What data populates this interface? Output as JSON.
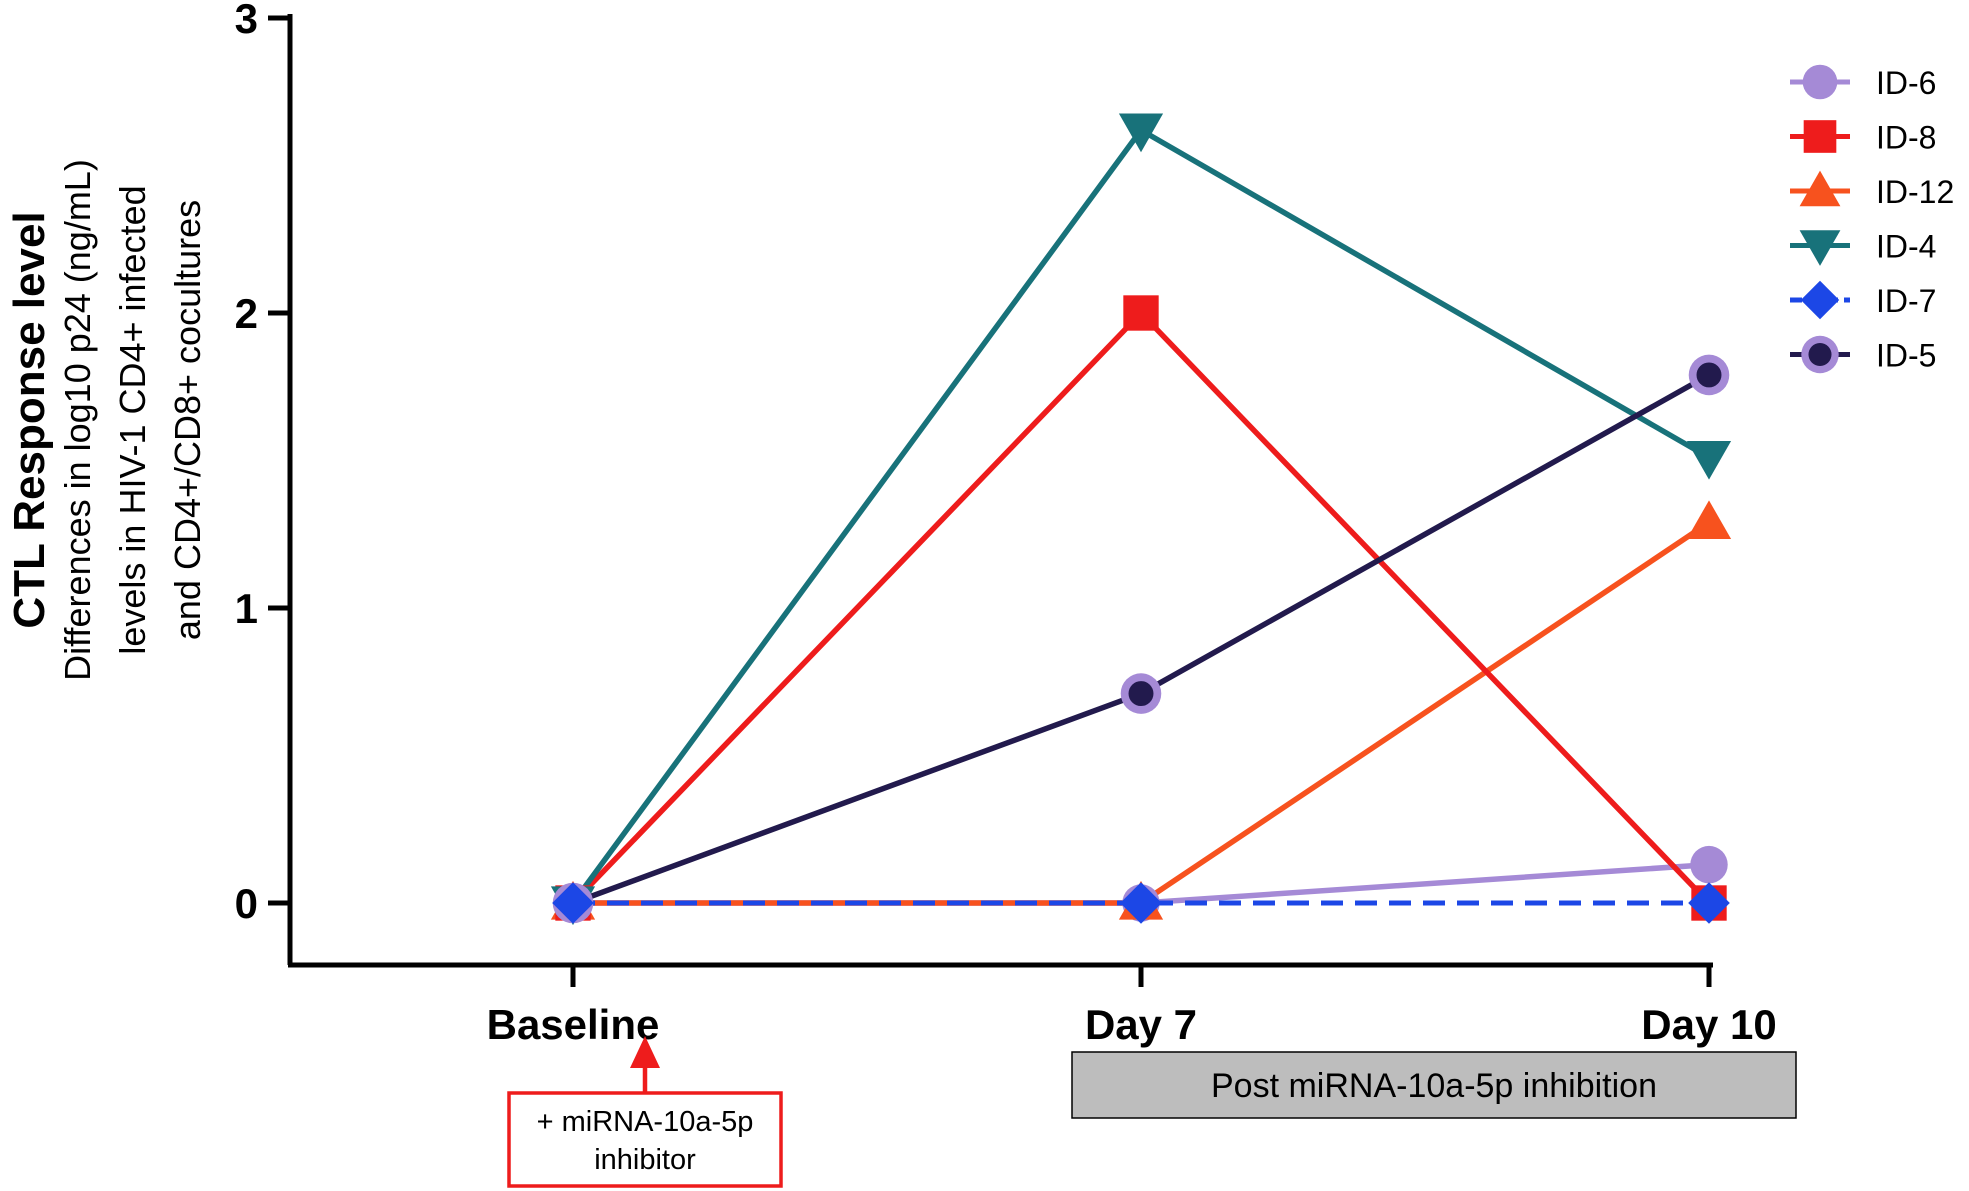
{
  "chart_data": {
    "type": "line",
    "title": "",
    "ylabel": {
      "title": "CTL Response level",
      "lines": [
        "Differences in log10 p24 (ng/mL)",
        "levels in HIV-1 CD4+ infected",
        "and CD4+/CD8+ cocultures"
      ]
    },
    "xlabel": "",
    "categories": [
      "Baseline",
      "Day 7",
      "Day 10"
    ],
    "ylim": [
      0,
      3
    ],
    "yticks": [
      "0",
      "1",
      "2",
      "3"
    ],
    "grid": false,
    "legend_position": "top-right",
    "series": [
      {
        "name": "ID-6",
        "values": [
          0,
          0,
          0.13
        ],
        "color": "#a58ad6",
        "marker": "circle",
        "dashed": false
      },
      {
        "name": "ID-8",
        "values": [
          0,
          2.0,
          0
        ],
        "color": "#ee1c1c",
        "marker": "square",
        "dashed": false
      },
      {
        "name": "ID-12",
        "values": [
          0,
          0,
          1.29
        ],
        "color": "#f7521e",
        "marker": "triangle-up",
        "dashed": false
      },
      {
        "name": "ID-4",
        "values": [
          0,
          2.62,
          1.51
        ],
        "color": "#18727a",
        "marker": "triangle-down",
        "dashed": false
      },
      {
        "name": "ID-7",
        "values": [
          0,
          0,
          0
        ],
        "color": "#1c47e6",
        "marker": "diamond",
        "dashed": true
      },
      {
        "name": "ID-5",
        "values": [
          0,
          0.71,
          1.79
        ],
        "color": "#221a4d",
        "marker": "ringed-circle",
        "dashed": false,
        "marker_ring_color": "#a58ad6"
      }
    ],
    "annotations": {
      "inhibitor_note": [
        "+ miRNA-10a-5p",
        "inhibitor"
      ],
      "inhibitor_arrow_color": "#ee1c1c",
      "post_banner": "Post miRNA-10a-5p inhibition",
      "post_banner_color": "#bdbdbd"
    }
  }
}
